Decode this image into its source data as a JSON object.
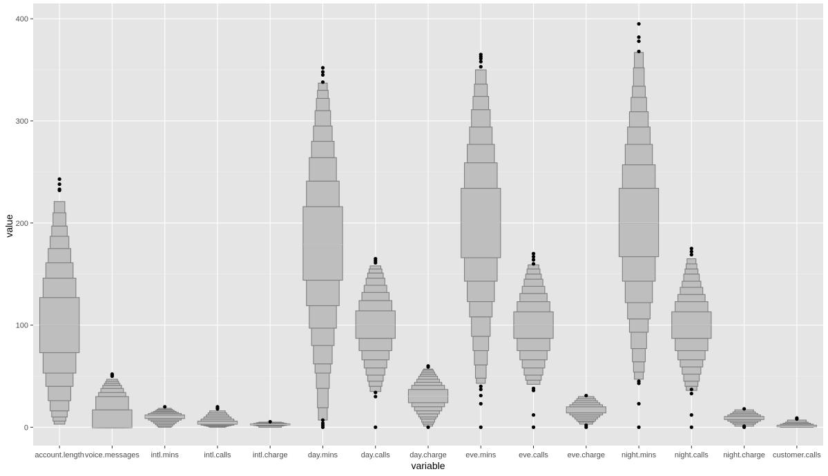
{
  "chart_data": {
    "type": "letter-value",
    "title": "",
    "xlabel": "variable",
    "ylabel": "value",
    "ylim": [
      -18,
      415
    ],
    "yticks": [
      0,
      100,
      200,
      300,
      400
    ],
    "categories": [
      "account.length",
      "voice.messages",
      "intl.mins",
      "intl.calls",
      "intl.charge",
      "day.mins",
      "day.calls",
      "day.charge",
      "eve.mins",
      "eve.calls",
      "eve.charge",
      "night.mins",
      "night.calls",
      "night.charge",
      "customer.calls"
    ],
    "series": [
      {
        "name": "account.length",
        "median": 100,
        "min": 3,
        "max": 228,
        "lower": [
          73,
          53,
          40,
          26,
          16,
          10,
          6,
          3
        ],
        "upper": [
          127,
          146,
          161,
          175,
          187,
          197,
          210,
          221
        ],
        "outliers": [
          232,
          233,
          238,
          243
        ]
      },
      {
        "name": "voice.messages",
        "median": 0,
        "min": 0,
        "max": 50,
        "lower": [
          0,
          0,
          0,
          0,
          0,
          0,
          0,
          0
        ],
        "upper": [
          17,
          30,
          34,
          38,
          41,
          43,
          45,
          47
        ],
        "outliers": [
          50,
          51,
          52
        ]
      },
      {
        "name": "intl.mins",
        "median": 10.2,
        "min": 0,
        "max": 19,
        "lower": [
          8.5,
          7,
          5.5,
          4,
          2.5,
          1,
          0
        ],
        "upper": [
          12,
          13.5,
          14.5,
          15.5,
          16.5,
          17.5,
          18.5
        ],
        "outliers": [
          20
        ]
      },
      {
        "name": "intl.calls",
        "median": 4,
        "min": 0,
        "max": 16,
        "lower": [
          3,
          2,
          1.5,
          1,
          0.5,
          0
        ],
        "upper": [
          6,
          8,
          10,
          12,
          14,
          16
        ],
        "outliers": [
          18,
          19,
          20
        ]
      },
      {
        "name": "intl.charge",
        "median": 2.8,
        "min": 0,
        "max": 5,
        "lower": [
          2.3,
          1.9,
          1.2,
          0
        ],
        "upper": [
          3.3,
          3.8,
          4.5,
          5
        ],
        "outliers": [
          5.4
        ]
      },
      {
        "name": "day.mins",
        "median": 179,
        "min": 7,
        "max": 337,
        "lower": [
          144,
          119,
          97,
          80,
          62,
          53,
          38,
          19,
          7
        ],
        "upper": [
          216,
          241,
          264,
          280,
          295,
          310,
          322,
          330,
          337
        ],
        "outliers": [
          0,
          2,
          4,
          7,
          338,
          345,
          348,
          352
        ]
      },
      {
        "name": "day.calls",
        "median": 100,
        "min": 35,
        "max": 160,
        "lower": [
          87,
          75,
          66,
          58,
          51,
          45,
          40,
          35
        ],
        "upper": [
          114,
          124,
          132,
          139,
          146,
          151,
          155,
          158
        ],
        "outliers": [
          0,
          30,
          34,
          161,
          163,
          165
        ]
      },
      {
        "name": "day.charge",
        "median": 30,
        "min": 1,
        "max": 57,
        "lower": [
          24,
          20,
          16,
          13,
          10,
          8,
          5,
          3,
          1
        ],
        "upper": [
          37,
          41,
          44,
          47,
          50,
          52,
          54,
          56,
          57
        ],
        "outliers": [
          0,
          59,
          60
        ]
      },
      {
        "name": "eve.mins",
        "median": 201,
        "min": 43,
        "max": 350,
        "lower": [
          166,
          143,
          123,
          108,
          89,
          75,
          61,
          48,
          43
        ],
        "upper": [
          234,
          259,
          277,
          294,
          311,
          324,
          336,
          350
        ],
        "outliers": [
          0,
          23,
          31,
          37,
          40,
          353,
          358,
          361,
          363,
          365
        ]
      },
      {
        "name": "eve.calls",
        "median": 100,
        "min": 42,
        "max": 160,
        "lower": [
          87,
          75,
          66,
          58,
          51,
          46,
          42
        ],
        "upper": [
          113,
          123,
          131,
          138,
          145,
          150,
          155,
          159
        ],
        "outliers": [
          0,
          12,
          36,
          38,
          160,
          164,
          167,
          170
        ]
      },
      {
        "name": "eve.charge",
        "median": 17,
        "min": 3,
        "max": 30,
        "lower": [
          14,
          12,
          10,
          8,
          6,
          5,
          3
        ],
        "upper": [
          20,
          22,
          24,
          26,
          28,
          30
        ],
        "outliers": [
          0,
          2,
          31
        ]
      },
      {
        "name": "night.mins",
        "median": 200,
        "min": 47,
        "max": 367,
        "lower": [
          167,
          143,
          122,
          106,
          93,
          77,
          64,
          54,
          47
        ],
        "upper": [
          234,
          257,
          277,
          294,
          309,
          323,
          334,
          352,
          367
        ],
        "outliers": [
          0,
          23,
          43,
          45,
          368,
          378,
          382,
          395
        ]
      },
      {
        "name": "night.calls",
        "median": 100,
        "min": 36,
        "max": 165,
        "lower": [
          87,
          75,
          66,
          59,
          52,
          45,
          40,
          36
        ],
        "upper": [
          113,
          123,
          130,
          137,
          143,
          150,
          155,
          160,
          165
        ],
        "outliers": [
          0,
          12,
          33,
          37,
          169,
          172,
          175
        ]
      },
      {
        "name": "night.charge",
        "median": 9,
        "min": 1,
        "max": 17,
        "lower": [
          7.5,
          6,
          4.5,
          3,
          1
        ],
        "upper": [
          10.5,
          12,
          13.5,
          15,
          17
        ],
        "outliers": [
          0,
          1,
          18
        ]
      },
      {
        "name": "customer.calls",
        "median": 1,
        "min": 0,
        "max": 7,
        "lower": [
          1,
          0
        ],
        "upper": [
          2,
          3,
          4,
          5,
          7
        ],
        "outliers": [
          8,
          9
        ]
      }
    ]
  }
}
